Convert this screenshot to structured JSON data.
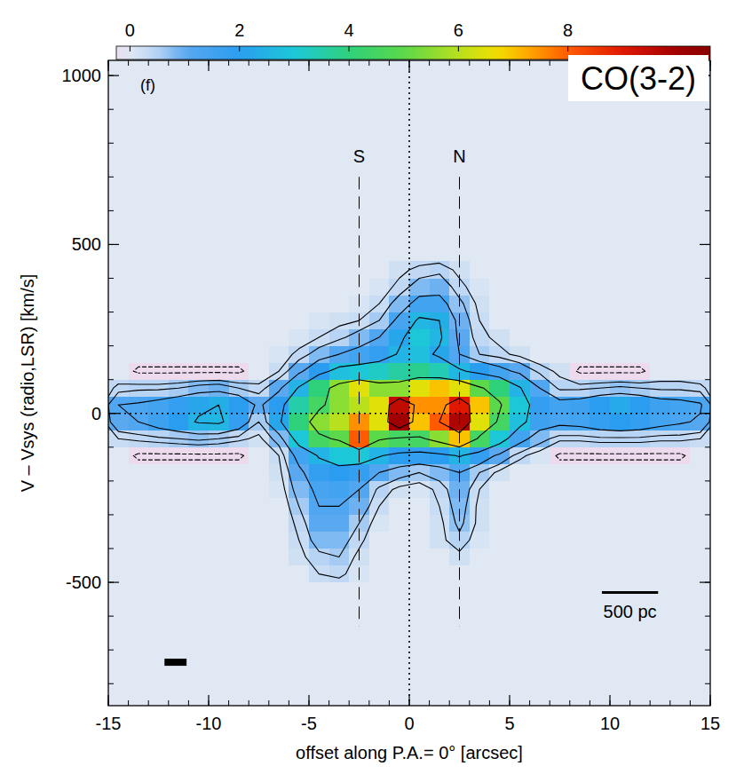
{
  "chart_data": {
    "type": "heatmap",
    "title": "CO(3-2)",
    "panel_label": "(f)",
    "x_label": "offset along P.A.= 0° [arcsec]",
    "y_label": "V – Vsys (radio,LSR) [km/s]",
    "xlim": [
      -15,
      15
    ],
    "ylim": [
      -865,
      1045
    ],
    "xticks": [
      -15,
      -10,
      -5,
      0,
      5,
      10,
      15
    ],
    "yticks": [
      -500,
      0,
      500,
      1000
    ],
    "xminor": [
      -15,
      -14,
      -13,
      -12,
      -11,
      -10,
      -9,
      -8,
      -7,
      -6,
      -5,
      -4,
      -3,
      -2,
      -1,
      0,
      1,
      2,
      3,
      4,
      5,
      6,
      7,
      8,
      9,
      10,
      11,
      12,
      13,
      14,
      15
    ],
    "yminor": [
      -800,
      -700,
      -600,
      -500,
      -400,
      -300,
      -200,
      -100,
      0,
      100,
      200,
      300,
      400,
      500,
      600,
      700,
      800,
      900,
      1000
    ],
    "x": [
      -14.5,
      -13.5,
      -12.5,
      -11.5,
      -10.5,
      -9.5,
      -8.5,
      -7.5,
      -6.5,
      -5.5,
      -4.5,
      -3.5,
      -2.5,
      -1.5,
      -0.5,
      0.5,
      1.5,
      2.5,
      3.5,
      4.5,
      5.5,
      6.5,
      7.5,
      8.5,
      9.5,
      10.5,
      11.5,
      12.5,
      13.5,
      14.5
    ],
    "y": [
      425,
      375,
      325,
      275,
      225,
      175,
      125,
      75,
      25,
      -25,
      -75,
      -125,
      -175,
      -225,
      -275,
      -325,
      -375,
      -425,
      -475,
      -525
    ],
    "cells": [
      [
        0,
        0,
        0,
        0,
        0,
        0,
        0,
        0,
        0,
        0,
        0,
        0,
        0,
        0,
        0.2,
        0.4,
        0.5,
        0.2,
        0,
        0,
        0,
        0,
        0,
        0,
        0,
        0,
        0,
        0,
        0,
        0
      ],
      [
        0,
        0,
        0,
        0,
        0,
        0,
        0,
        0,
        0,
        0,
        0,
        0,
        0,
        0.1,
        0.4,
        0.8,
        0.9,
        0.4,
        0.1,
        0,
        0,
        0,
        0,
        0,
        0,
        0,
        0,
        0,
        0,
        0
      ],
      [
        0,
        0,
        0,
        0,
        0,
        0,
        0,
        0,
        0,
        0,
        0,
        0,
        0.1,
        0.3,
        0.8,
        1.5,
        1.5,
        0.7,
        0.2,
        0,
        0,
        0,
        0,
        0,
        0,
        0,
        0,
        0,
        0,
        0
      ],
      [
        0,
        0,
        0,
        0,
        0,
        0,
        0,
        0,
        0,
        0,
        0.1,
        0.2,
        0.3,
        0.6,
        1.4,
        2.6,
        2.4,
        0.9,
        0.3,
        0,
        0,
        0,
        0,
        0,
        0,
        0,
        0,
        0,
        0,
        0
      ],
      [
        0,
        0,
        0,
        0,
        0,
        0,
        0,
        0,
        0,
        0.1,
        0.3,
        0.5,
        0.8,
        1.2,
        2.2,
        3.0,
        2.6,
        1.0,
        0.4,
        0.2,
        0,
        0,
        0,
        0,
        0,
        0,
        0,
        0,
        0,
        0
      ],
      [
        0,
        0,
        0,
        0,
        0,
        0,
        0,
        0,
        0.1,
        0.4,
        0.8,
        1.2,
        1.5,
        1.8,
        2.5,
        2.8,
        2.2,
        1.2,
        0.6,
        0.4,
        0.2,
        0,
        0,
        0,
        0,
        0,
        0,
        0,
        0,
        0
      ],
      [
        0,
        -0.4,
        -0.4,
        -0.4,
        -0.4,
        -0.4,
        -0.4,
        0,
        0.3,
        1.0,
        2.0,
        2.8,
        3.0,
        3.2,
        3.6,
        3.8,
        3.4,
        2.6,
        2.0,
        1.5,
        1.0,
        0.5,
        0.2,
        -0.4,
        -0.4,
        -0.4,
        -0.4,
        0,
        0,
        0
      ],
      [
        0.4,
        0.5,
        0.5,
        0.6,
        0.8,
        0.9,
        0.6,
        0.4,
        1.0,
        2.5,
        4.0,
        5.5,
        6.5,
        5.5,
        5.5,
        6.5,
        7.0,
        6.5,
        5.0,
        4.0,
        2.5,
        1.2,
        0.5,
        0.5,
        0.6,
        0.7,
        0.6,
        0.5,
        0.5,
        0.4
      ],
      [
        1.2,
        1.3,
        1.5,
        1.8,
        2.2,
        2.4,
        2.0,
        1.0,
        2.0,
        3.5,
        4.5,
        5.5,
        6.0,
        6.5,
        9.5,
        7.5,
        7.5,
        9.0,
        7.0,
        5.0,
        3.0,
        1.8,
        1.5,
        1.6,
        2.0,
        2.3,
        2.0,
        1.6,
        1.5,
        1.3
      ],
      [
        1.0,
        1.2,
        1.6,
        2.0,
        2.5,
        2.6,
        1.8,
        0.6,
        2.2,
        4.0,
        5.5,
        6.0,
        7.5,
        6.5,
        10.0,
        7.0,
        8.0,
        9.8,
        6.5,
        4.5,
        2.8,
        1.6,
        1.4,
        1.5,
        1.8,
        2.0,
        1.8,
        1.5,
        1.3,
        1.1
      ],
      [
        0.3,
        0.4,
        0.5,
        0.6,
        0.7,
        0.6,
        0.4,
        0.2,
        0.8,
        3.0,
        4.5,
        5.0,
        8.0,
        5.0,
        4.5,
        4.5,
        5.5,
        7.0,
        4.5,
        3.0,
        1.5,
        0.8,
        0.4,
        0.4,
        0.5,
        0.5,
        0.5,
        0.4,
        0.4,
        0.3
      ],
      [
        0,
        -0.4,
        -0.4,
        -0.4,
        -0.4,
        -0.4,
        -0.4,
        0,
        0.3,
        1.5,
        2.5,
        3.0,
        3.0,
        2.5,
        2.0,
        1.8,
        2.0,
        2.5,
        1.8,
        1.0,
        0.4,
        0.1,
        -0.4,
        -0.4,
        -0.4,
        -0.4,
        -0.4,
        -0.4,
        -0.4,
        0
      ],
      [
        0,
        0,
        0,
        0,
        0,
        0,
        0,
        0,
        0.2,
        1.0,
        1.8,
        2.0,
        1.8,
        1.2,
        0.8,
        0.6,
        0.8,
        1.2,
        0.6,
        0.2,
        0,
        0,
        0,
        0,
        0,
        0,
        0,
        0,
        0,
        0
      ],
      [
        0,
        0,
        0,
        0,
        0,
        0,
        0,
        0,
        0.1,
        0.8,
        1.4,
        1.5,
        1.2,
        0.5,
        0.2,
        0.1,
        0.4,
        0.9,
        0.3,
        0,
        0,
        0,
        0,
        0,
        0,
        0,
        0,
        0,
        0,
        0
      ],
      [
        0,
        0,
        0,
        0,
        0,
        0,
        0,
        0,
        0,
        0.6,
        1.2,
        1.2,
        0.9,
        0.3,
        0,
        0,
        0.3,
        0.8,
        0.2,
        0,
        0,
        0,
        0,
        0,
        0,
        0,
        0,
        0,
        0,
        0
      ],
      [
        0,
        0,
        0,
        0,
        0,
        0,
        0,
        0,
        0,
        0.4,
        1.0,
        1.0,
        0.6,
        0.1,
        0,
        0,
        0.2,
        0.7,
        0.2,
        0,
        0,
        0,
        0,
        0,
        0,
        0,
        0,
        0,
        0,
        0
      ],
      [
        0,
        0,
        0,
        0,
        0,
        0,
        0,
        0,
        0,
        0.3,
        0.8,
        0.8,
        0.4,
        0,
        0,
        0,
        0.2,
        0.5,
        0.1,
        0,
        0,
        0,
        0,
        0,
        0,
        0,
        0,
        0,
        0,
        0
      ],
      [
        0,
        0,
        0,
        0,
        0,
        0,
        0,
        0,
        0,
        0.2,
        0.5,
        0.6,
        0.2,
        0,
        0,
        0,
        0,
        0.2,
        0,
        0,
        0,
        0,
        0,
        0,
        0,
        0,
        0,
        0,
        0,
        0
      ],
      [
        0,
        0,
        0,
        0,
        0,
        0,
        0,
        0,
        0,
        0,
        0.3,
        0.4,
        0.1,
        0,
        0,
        0,
        0,
        0,
        0,
        0,
        0,
        0,
        0,
        0,
        0,
        0,
        0,
        0,
        0,
        0
      ],
      [
        0,
        0,
        0,
        0,
        0,
        0,
        0,
        0,
        0,
        0,
        0,
        0,
        0,
        0,
        0,
        0,
        0,
        0,
        0,
        0,
        0,
        0,
        0,
        0,
        0,
        0,
        0,
        0,
        0,
        0
      ]
    ],
    "contour_levels": [
      -0.3,
      0.3,
      0.6,
      1.2,
      2.4,
      4.8,
      8
    ],
    "colorbar": {
      "range": [
        -0.25,
        10.6
      ],
      "ticks": [
        0,
        2,
        4,
        6,
        8
      ]
    },
    "markers": [
      {
        "label": "S",
        "x": -2.5,
        "range": [
          -630,
          700
        ]
      },
      {
        "label": "N",
        "x": 2.5,
        "range": [
          -630,
          700
        ]
      }
    ],
    "reference_lines": {
      "x": 0,
      "y": 0
    },
    "scale_bar": {
      "label": "500 pc",
      "x": [
        9.6,
        12.4
      ],
      "y": -530
    },
    "beam": {
      "x": [
        -12.2,
        -11.1
      ],
      "y": [
        -747,
        -726
      ]
    }
  }
}
